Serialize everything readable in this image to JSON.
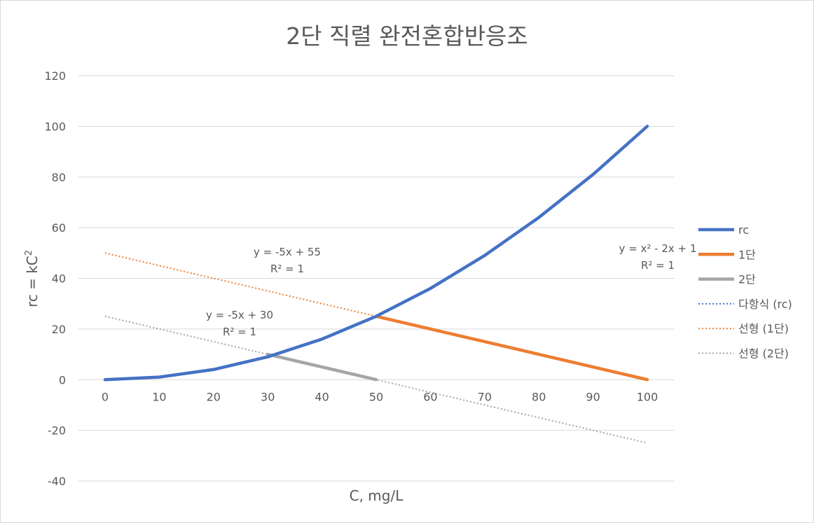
{
  "chart_data": {
    "type": "line",
    "title": "2단 직렬 완전혼합반응조",
    "xlabel": "C, mg/L",
    "ylabel": "rc = kC",
    "ylabel_sup": "2",
    "x_ticks": [
      "0",
      "10",
      "20",
      "30",
      "40",
      "50",
      "60",
      "70",
      "80",
      "90",
      "100"
    ],
    "y_ticks": [
      "120",
      "100",
      "80",
      "60",
      "40",
      "20",
      "0",
      "-20",
      "-40"
    ],
    "xlim": [
      0,
      100
    ],
    "ylim": [
      -40,
      120
    ],
    "grid": true,
    "legend_position": "right",
    "series": [
      {
        "name": "rc",
        "color": "#4472C4",
        "style": "solid",
        "x": [
          0,
          10,
          20,
          30,
          40,
          50,
          60,
          70,
          80,
          90,
          100
        ],
        "y": [
          0,
          1,
          4,
          9,
          16,
          25,
          36,
          49,
          64,
          81,
          100
        ]
      },
      {
        "name": "1단",
        "color": "#ED7D31",
        "style": "solid",
        "x": [
          50,
          100
        ],
        "y": [
          25,
          0
        ]
      },
      {
        "name": "2단",
        "color": "#A5A5A5",
        "style": "solid",
        "x": [
          30,
          50
        ],
        "y": [
          10,
          0
        ]
      },
      {
        "name": "다항식 (rc)",
        "color": "#4472C4",
        "style": "dotted",
        "x": [
          0,
          10,
          20,
          30,
          40,
          50,
          60,
          70,
          80,
          90,
          100
        ],
        "y": [
          0,
          1,
          4,
          9,
          16,
          25,
          36,
          49,
          64,
          81,
          100
        ]
      },
      {
        "name": "선형 (1단)",
        "color": "#ED7D31",
        "style": "dotted",
        "x": [
          0,
          100
        ],
        "y": [
          50,
          0
        ]
      },
      {
        "name": "선형 (2단)",
        "color": "#A5A5A5",
        "style": "dotted",
        "x": [
          0,
          100
        ],
        "y": [
          25,
          -25
        ]
      }
    ],
    "annotations": [
      {
        "text": "y = -5x + 55",
        "sub": "R² = 1"
      },
      {
        "text": "y = -5x + 30",
        "sub": "R² = 1"
      },
      {
        "text": "y = x² - 2x + 1",
        "sub": "R² = 1"
      }
    ]
  }
}
